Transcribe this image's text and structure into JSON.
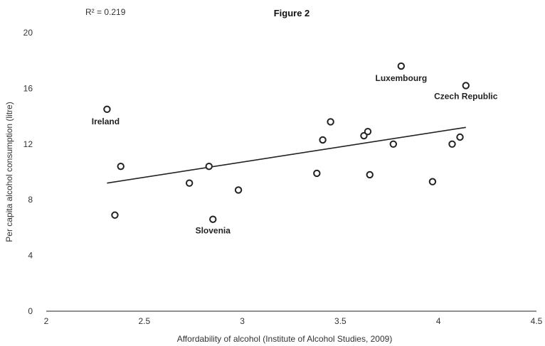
{
  "chart_data": {
    "type": "scatter",
    "title": "Figure 2",
    "annotation": "R² = 0.219",
    "xlabel": "Affordability of alcohol (Institute of Alcohol Studies, 2009)",
    "ylabel": "Per capita alcohol consumption (litre)",
    "xlim": [
      2,
      4.5
    ],
    "ylim": [
      0,
      20
    ],
    "xticks": [
      "2",
      "2.5",
      "3",
      "3.5",
      "4",
      "4.5"
    ],
    "yticks": [
      "0",
      "4",
      "8",
      "12",
      "16",
      "20"
    ],
    "grid": false,
    "points": [
      {
        "x": 2.31,
        "y": 14.5,
        "label": "Ireland"
      },
      {
        "x": 2.35,
        "y": 6.9
      },
      {
        "x": 2.38,
        "y": 10.4
      },
      {
        "x": 2.73,
        "y": 9.2
      },
      {
        "x": 2.83,
        "y": 10.4
      },
      {
        "x": 2.85,
        "y": 6.6,
        "label": "Slovenia"
      },
      {
        "x": 2.98,
        "y": 8.7
      },
      {
        "x": 3.38,
        "y": 9.9
      },
      {
        "x": 3.41,
        "y": 12.3
      },
      {
        "x": 3.45,
        "y": 13.6
      },
      {
        "x": 3.62,
        "y": 12.6
      },
      {
        "x": 3.64,
        "y": 12.9
      },
      {
        "x": 3.65,
        "y": 9.8
      },
      {
        "x": 3.77,
        "y": 12.0
      },
      {
        "x": 3.81,
        "y": 17.6,
        "label": "Luxembourg"
      },
      {
        "x": 3.97,
        "y": 9.3
      },
      {
        "x": 4.07,
        "y": 12.0
      },
      {
        "x": 4.11,
        "y": 12.5
      },
      {
        "x": 4.14,
        "y": 16.2,
        "label": "Czech Republic"
      }
    ],
    "trendline": {
      "x1": 2.31,
      "y1": 9.2,
      "x2": 4.14,
      "y2": 13.2
    }
  }
}
